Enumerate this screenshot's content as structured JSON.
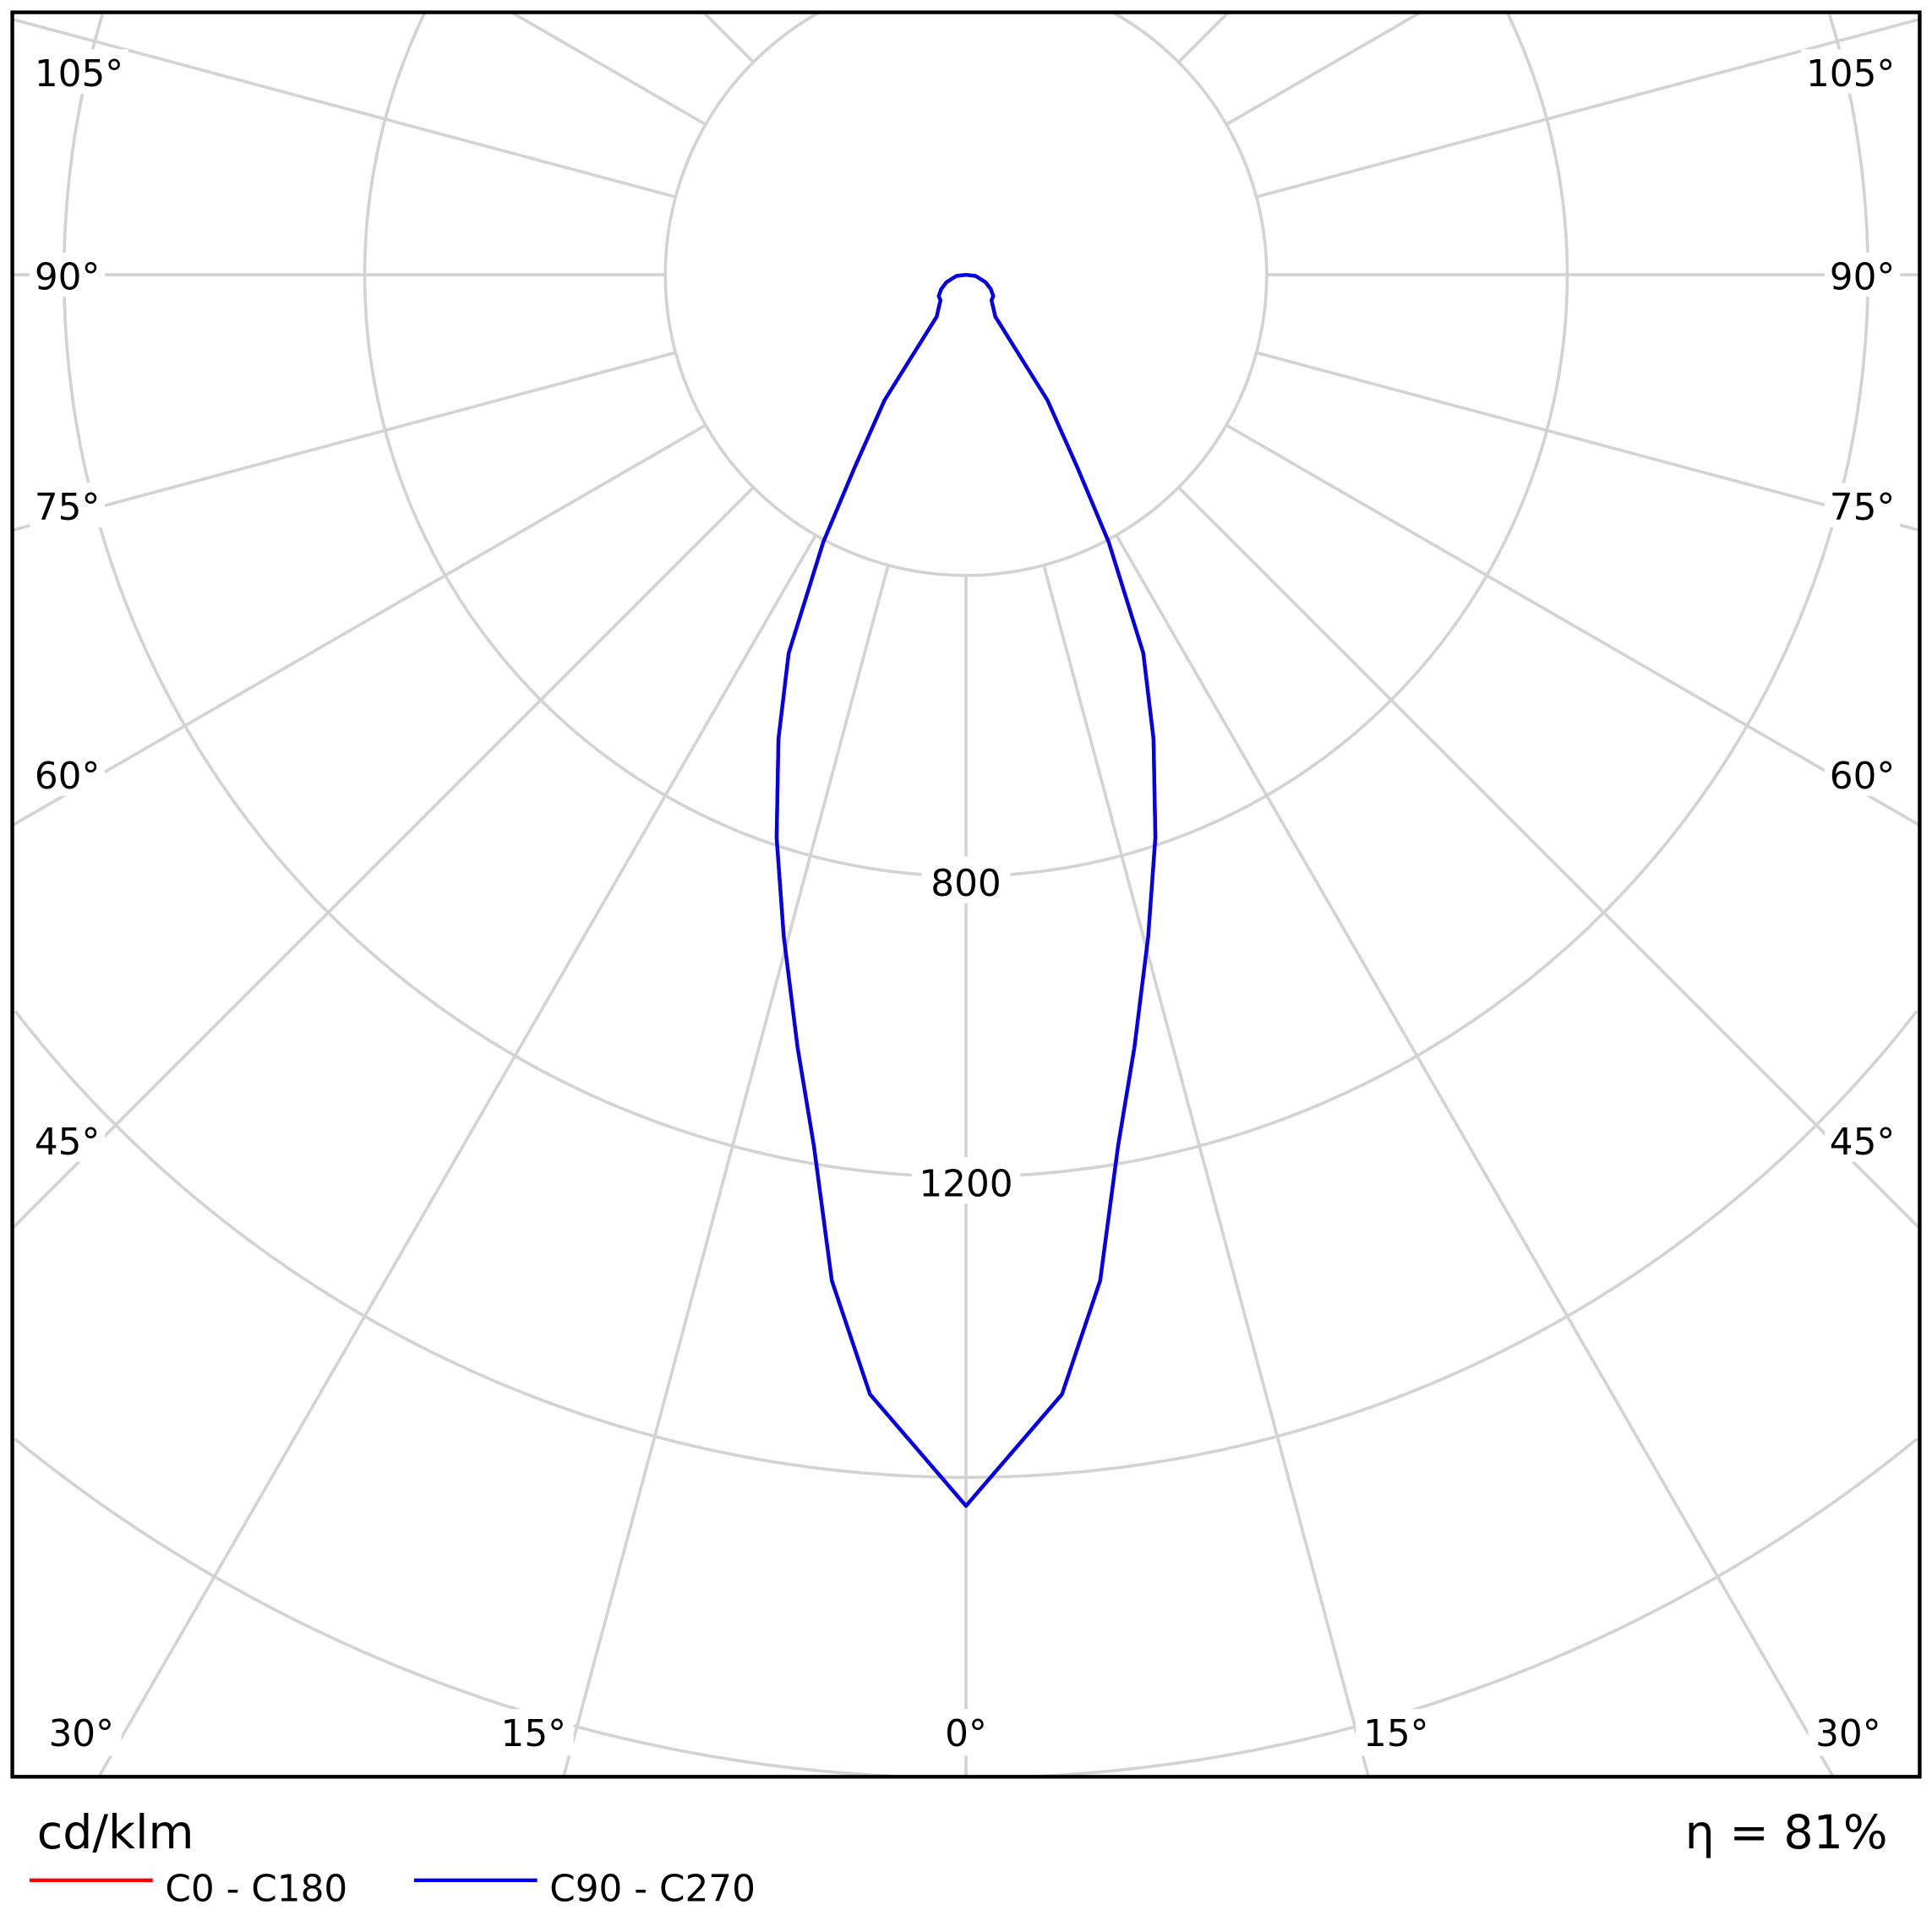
{
  "chart_data": {
    "type": "polar",
    "unit": "cd/klm",
    "efficiency": "η = 81%",
    "radial_ticks": [
      400,
      800,
      1200,
      1600,
      2000
    ],
    "radial_tick_labels": {
      "r800": "800",
      "r1200": "1200"
    },
    "angle_labels": {
      "a105": "105°",
      "a90": "90°",
      "a75": "75°",
      "a60": "60°",
      "a45": "45°",
      "a30": "30°",
      "a15": "15°",
      "a0": "0°"
    },
    "grid": true,
    "angle_step": 15,
    "series": [
      {
        "name": "C0 - C180",
        "color": "#ff0000",
        "angles": [
          0,
          4.9,
          7.6,
          9.9,
          12.3,
          15.4,
          18.6,
          22,
          25.1,
          28.1,
          30,
          33,
          35,
          45,
          52,
          60,
          69,
          83,
          90
        ],
        "values": [
          1638,
          1495,
          1350,
          1177,
          1052,
          913,
          790,
          666,
          556,
          403,
          297,
          199,
          68,
          48,
          46,
          38,
          28,
          13,
          0
        ]
      },
      {
        "name": "C90 - C270",
        "color": "#0000ee",
        "angles": [
          0,
          4.9,
          7.6,
          9.9,
          12.3,
          15.4,
          18.6,
          22,
          25.1,
          28.1,
          30,
          33,
          35,
          45,
          52,
          60,
          69,
          83,
          90
        ],
        "values": [
          1638,
          1495,
          1350,
          1177,
          1052,
          913,
          790,
          666,
          556,
          403,
          297,
          199,
          68,
          48,
          46,
          38,
          28,
          13,
          0
        ]
      }
    ]
  }
}
